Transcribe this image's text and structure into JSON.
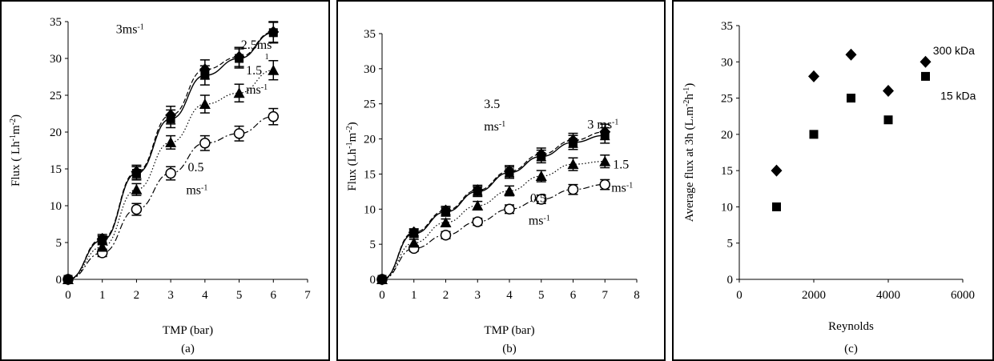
{
  "chart_data": [
    {
      "id": "a",
      "type": "line",
      "caption": "(a)",
      "xlabel": "TMP (bar)",
      "ylabel_parts": [
        "Flux ( Lh",
        "-1",
        "m",
        "-2",
        ")"
      ],
      "xlim": [
        0,
        7
      ],
      "ylim": [
        0,
        35
      ],
      "xticks": [
        0,
        1,
        2,
        3,
        4,
        5,
        6,
        7
      ],
      "yticks": [
        0,
        5,
        10,
        15,
        20,
        25,
        30,
        35
      ],
      "series": [
        {
          "marker": "circle-open",
          "line": "dashdot",
          "x": [
            0,
            1,
            2,
            3,
            4,
            5,
            6
          ],
          "y": [
            0,
            3.6,
            9.5,
            14.4,
            18.5,
            19.8,
            22.1
          ],
          "err": [
            0,
            0.5,
            0.8,
            0.9,
            1.0,
            1.0,
            1.1
          ]
        },
        {
          "marker": "triangle",
          "line": "dotted",
          "x": [
            0,
            1,
            2,
            3,
            4,
            5,
            6
          ],
          "y": [
            0,
            4.4,
            12.2,
            18.6,
            23.8,
            25.3,
            28.4
          ],
          "err": [
            0,
            0.5,
            0.8,
            0.9,
            1.2,
            1.2,
            1.3
          ]
        },
        {
          "marker": "square",
          "line": "solid",
          "x": [
            0,
            1,
            2,
            3,
            4,
            5,
            6
          ],
          "y": [
            0,
            5.3,
            14.4,
            21.8,
            27.7,
            30.0,
            33.5
          ],
          "err": [
            0,
            0.6,
            0.9,
            1.2,
            1.3,
            1.3,
            1.4
          ]
        },
        {
          "marker": "diamond",
          "line": "dashed",
          "x": [
            0,
            1,
            2,
            3,
            4,
            5,
            6
          ],
          "y": [
            0,
            5.5,
            14.6,
            22.3,
            28.5,
            30.2,
            33.6
          ],
          "err": [
            0,
            0.6,
            0.9,
            1.2,
            1.3,
            1.3,
            1.4
          ]
        }
      ],
      "annotations": [
        {
          "parts": [
            "3ms",
            "-1"
          ],
          "x": 1.4,
          "y": 33.4
        },
        {
          "parts": [
            "2.5ms",
            "-"
          ],
          "x": 5.05,
          "y": 31.3
        },
        {
          "parts": [
            "1"
          ],
          "x": 5.75,
          "y": 29.9,
          "small": true
        },
        {
          "parts": [
            "1.5"
          ],
          "x": 5.2,
          "y": 27.8
        },
        {
          "parts": [
            "ms",
            "-1"
          ],
          "x": 5.2,
          "y": 25.2
        },
        {
          "parts": [
            "0.5"
          ],
          "x": 3.5,
          "y": 14.7
        },
        {
          "parts": [
            "ms",
            "-1"
          ],
          "x": 3.45,
          "y": 11.6
        }
      ]
    },
    {
      "id": "b",
      "type": "line",
      "caption": "(b)",
      "xlabel": "TMP (bar)",
      "ylabel_parts": [
        "Flux  (Lh",
        "-1",
        "m",
        "-2",
        ")"
      ],
      "xlim": [
        0,
        8
      ],
      "ylim": [
        0,
        35
      ],
      "xticks": [
        0,
        1,
        2,
        3,
        4,
        5,
        6,
        7,
        8
      ],
      "yticks": [
        0,
        5,
        10,
        15,
        20,
        25,
        30,
        35
      ],
      "series": [
        {
          "marker": "circle-open",
          "line": "dashdot",
          "x": [
            0,
            1,
            2,
            3,
            4,
            5,
            6,
            7
          ],
          "y": [
            0,
            4.4,
            6.3,
            8.2,
            10.0,
            11.4,
            12.8,
            13.5
          ],
          "err": [
            0,
            0.4,
            0.5,
            0.5,
            0.6,
            0.6,
            0.7,
            0.7
          ]
        },
        {
          "marker": "triangle",
          "line": "dotted",
          "x": [
            0,
            1,
            2,
            3,
            4,
            5,
            6,
            7
          ],
          "y": [
            0,
            5.2,
            8.1,
            10.5,
            12.6,
            14.7,
            16.4,
            16.8
          ],
          "err": [
            0,
            0.5,
            0.5,
            0.6,
            0.7,
            0.8,
            0.9,
            0.9
          ]
        },
        {
          "marker": "square",
          "line": "solid",
          "x": [
            0,
            1,
            2,
            3,
            4,
            5,
            6,
            7
          ],
          "y": [
            0,
            6.5,
            9.6,
            12.5,
            15.2,
            17.5,
            19.5,
            20.5
          ],
          "err": [
            0,
            0.5,
            0.6,
            0.7,
            0.8,
            0.9,
            1.0,
            1.1
          ]
        },
        {
          "marker": "diamond",
          "line": "dashed",
          "x": [
            0,
            1,
            2,
            3,
            4,
            5,
            6,
            7
          ],
          "y": [
            0,
            6.7,
            9.8,
            12.7,
            15.4,
            17.8,
            19.8,
            21.0
          ],
          "err": [
            0,
            0.5,
            0.6,
            0.7,
            0.8,
            0.9,
            1.0,
            1.1
          ]
        }
      ],
      "annotations": [
        {
          "parts": [
            "3.5"
          ],
          "x": 3.2,
          "y": 24.4
        },
        {
          "parts": [
            "ms",
            "-1"
          ],
          "x": 3.2,
          "y": 21.2
        },
        {
          "parts": [
            "3 ms",
            "-1"
          ],
          "x": 6.45,
          "y": 21.5
        },
        {
          "parts": [
            "1.5"
          ],
          "x": 7.25,
          "y": 15.8
        },
        {
          "parts": [
            "ms",
            "-1"
          ],
          "x": 7.2,
          "y": 12.5
        },
        {
          "parts": [
            "0.5"
          ],
          "x": 4.65,
          "y": 11.0
        },
        {
          "parts": [
            "ms",
            "-1"
          ],
          "x": 4.6,
          "y": 7.8
        }
      ]
    },
    {
      "id": "c",
      "type": "scatter",
      "caption": "(c)",
      "xlabel": "Reynolds",
      "ylabel_parts": [
        "Average flux at 3h  (L.m",
        "-2",
        "h",
        "-1",
        ")"
      ],
      "xlim": [
        0,
        6000
      ],
      "ylim": [
        0,
        35
      ],
      "xticks": [
        0,
        2000,
        4000,
        6000
      ],
      "yticks": [
        0,
        5,
        10,
        15,
        20,
        25,
        30,
        35
      ],
      "series": [
        {
          "marker": "diamond",
          "x": [
            1000,
            2000,
            3000,
            4000,
            5000
          ],
          "y": [
            15,
            28,
            31,
            26,
            30
          ]
        },
        {
          "marker": "square",
          "x": [
            1000,
            2000,
            3000,
            4000,
            5000
          ],
          "y": [
            10,
            20,
            25,
            22,
            28
          ]
        }
      ],
      "annotations": [
        {
          "parts": [
            "300 kDa"
          ],
          "x": 5200,
          "y": 31.0,
          "sans": true
        },
        {
          "parts": [
            "15 kDa"
          ],
          "x": 5400,
          "y": 24.8,
          "sans": true
        }
      ]
    }
  ]
}
